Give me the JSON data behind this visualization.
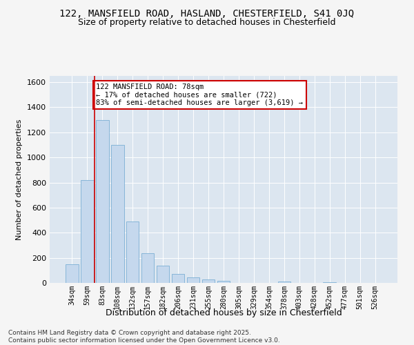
{
  "title_line1": "122, MANSFIELD ROAD, HASLAND, CHESTERFIELD, S41 0JQ",
  "title_line2": "Size of property relative to detached houses in Chesterfield",
  "xlabel": "Distribution of detached houses by size in Chesterfield",
  "ylabel": "Number of detached properties",
  "categories": [
    "34sqm",
    "59sqm",
    "83sqm",
    "108sqm",
    "132sqm",
    "157sqm",
    "182sqm",
    "206sqm",
    "231sqm",
    "255sqm",
    "280sqm",
    "305sqm",
    "329sqm",
    "354sqm",
    "378sqm",
    "403sqm",
    "428sqm",
    "452sqm",
    "477sqm",
    "501sqm",
    "526sqm"
  ],
  "values": [
    150,
    820,
    1300,
    1100,
    490,
    235,
    140,
    70,
    42,
    28,
    18,
    0,
    0,
    0,
    12,
    0,
    0,
    8,
    0,
    0,
    0
  ],
  "bar_color": "#c5d8ed",
  "bar_edge_color": "#7bafd4",
  "vline_color": "#cc0000",
  "annotation_text": "122 MANSFIELD ROAD: 78sqm\n← 17% of detached houses are smaller (722)\n83% of semi-detached houses are larger (3,619) →",
  "annotation_box_facecolor": "#ffffff",
  "annotation_box_edgecolor": "#cc0000",
  "ylim": [
    0,
    1650
  ],
  "yticks": [
    0,
    200,
    400,
    600,
    800,
    1000,
    1200,
    1400,
    1600
  ],
  "plot_bg_color": "#dce6f0",
  "grid_color": "#ffffff",
  "fig_bg_color": "#f5f5f5",
  "footer_line1": "Contains HM Land Registry data © Crown copyright and database right 2025.",
  "footer_line2": "Contains public sector information licensed under the Open Government Licence v3.0.",
  "title_fontsize": 10,
  "subtitle_fontsize": 9,
  "ylabel_fontsize": 8,
  "xlabel_fontsize": 9,
  "tick_fontsize": 7,
  "footer_fontsize": 6.5,
  "annotation_fontsize": 7.5
}
